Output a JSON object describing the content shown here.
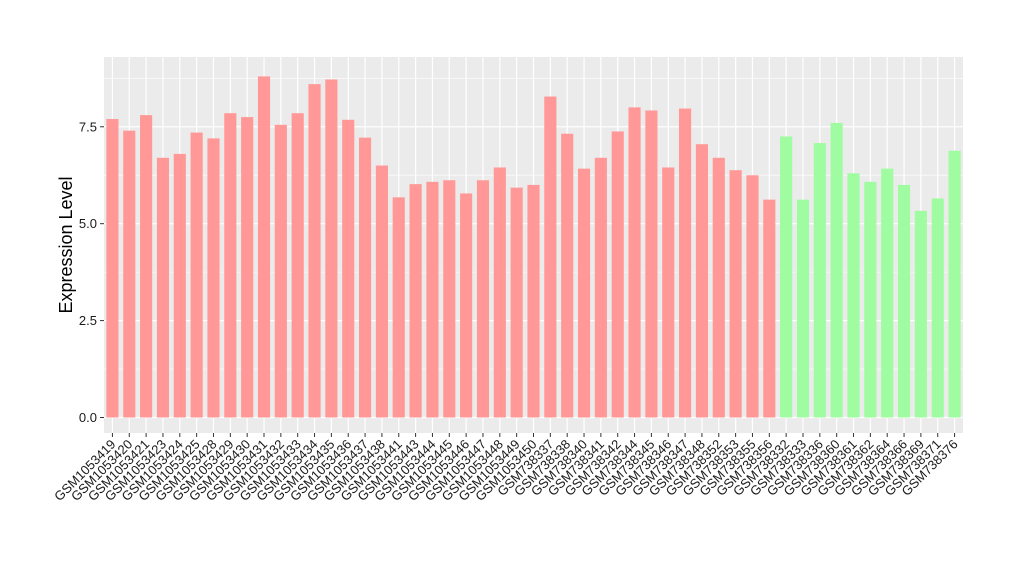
{
  "chart_data": {
    "type": "bar",
    "ylabel": "Expression Level",
    "xlabel": "",
    "title": "",
    "ylim": [
      -0.4,
      9.3
    ],
    "yticks": [
      0.0,
      2.5,
      5.0,
      7.5
    ],
    "ytick_labels": [
      "0.0",
      "2.5",
      "5.0",
      "7.5"
    ],
    "grid": true,
    "legend": "none",
    "colors": {
      "group1": "#ff9896",
      "group2": "#a0fca0",
      "panel": "#ebebeb",
      "grid": "#ffffff"
    },
    "categories": [
      "GSM1053419",
      "GSM1053420",
      "GSM1053421",
      "GSM1053423",
      "GSM1053424",
      "GSM1053425",
      "GSM1053428",
      "GSM1053429",
      "GSM1053430",
      "GSM1053431",
      "GSM1053432",
      "GSM1053433",
      "GSM1053434",
      "GSM1053435",
      "GSM1053436",
      "GSM1053437",
      "GSM1053438",
      "GSM1053441",
      "GSM1053443",
      "GSM1053444",
      "GSM1053445",
      "GSM1053446",
      "GSM1053447",
      "GSM1053448",
      "GSM1053449",
      "GSM1053450",
      "GSM738337",
      "GSM738338",
      "GSM738340",
      "GSM738341",
      "GSM738342",
      "GSM738344",
      "GSM738345",
      "GSM738346",
      "GSM738347",
      "GSM738348",
      "GSM738352",
      "GSM738353",
      "GSM738355",
      "GSM738356",
      "GSM738332",
      "GSM738333",
      "GSM738336",
      "GSM738360",
      "GSM738361",
      "GSM738362",
      "GSM738364",
      "GSM738366",
      "GSM738369",
      "GSM738371",
      "GSM738376"
    ],
    "values": [
      7.7,
      7.4,
      7.8,
      6.7,
      6.8,
      7.35,
      7.2,
      7.85,
      7.75,
      8.8,
      7.55,
      7.85,
      8.6,
      8.72,
      7.68,
      7.22,
      6.5,
      5.68,
      6.02,
      6.08,
      6.12,
      5.78,
      6.12,
      6.45,
      5.93,
      6.0,
      8.28,
      7.32,
      6.42,
      6.7,
      7.38,
      8.0,
      7.92,
      6.45,
      7.97,
      7.05,
      6.7,
      6.38,
      6.25,
      5.62,
      7.25,
      5.62,
      7.08,
      7.6,
      6.3,
      6.08,
      6.42,
      6.0,
      5.33,
      5.65,
      6.88
    ],
    "groups": [
      1,
      1,
      1,
      1,
      1,
      1,
      1,
      1,
      1,
      1,
      1,
      1,
      1,
      1,
      1,
      1,
      1,
      1,
      1,
      1,
      1,
      1,
      1,
      1,
      1,
      1,
      1,
      1,
      1,
      1,
      1,
      1,
      1,
      1,
      1,
      1,
      1,
      1,
      1,
      1,
      2,
      2,
      2,
      2,
      2,
      2,
      2,
      2,
      2,
      2,
      2
    ]
  }
}
